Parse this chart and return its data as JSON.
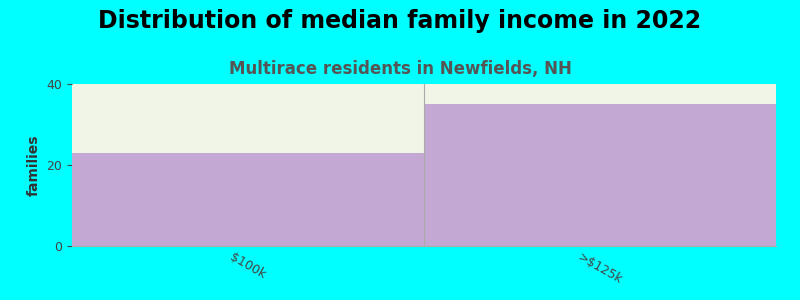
{
  "title": "Distribution of median family income in 2022",
  "subtitle": "Multirace residents in Newfields, NH",
  "categories": [
    "$100k",
    ">$125k"
  ],
  "values": [
    23,
    35
  ],
  "bar_color": "#c4a8d4",
  "background_color": "#00ffff",
  "plot_bg_color": "#f0f5e8",
  "ylabel": "families",
  "ylim": [
    0,
    40
  ],
  "yticks": [
    0,
    20,
    40
  ],
  "title_fontsize": 17,
  "subtitle_fontsize": 12,
  "subtitle_color": "#555555",
  "ylabel_fontsize": 10,
  "tick_fontsize": 9
}
